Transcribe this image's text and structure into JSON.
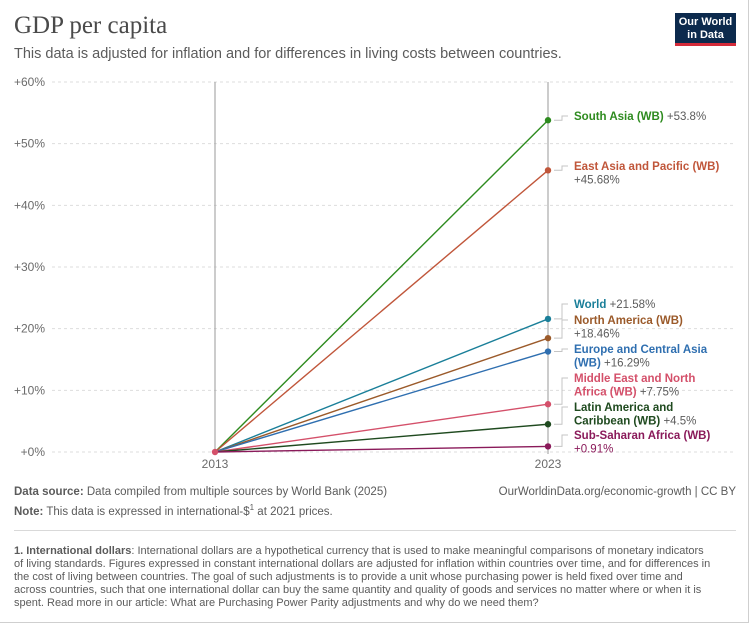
{
  "header": {
    "title": "GDP per capita",
    "subtitle": "This data is adjusted for inflation and for differences in living costs between countries.",
    "logo_line1": "Our World",
    "logo_line2": "in Data"
  },
  "chart_data": {
    "type": "line",
    "x": [
      "2013",
      "2023"
    ],
    "yticks": [
      "+0%",
      "+10%",
      "+20%",
      "+30%",
      "+40%",
      "+50%",
      "+60%"
    ],
    "ylim": [
      0,
      60
    ],
    "grid": true,
    "series": [
      {
        "name": "South Asia (WB)",
        "label_line1": "South Asia (WB)",
        "value_label": "+53.8%",
        "values": [
          0,
          53.8
        ],
        "color": "#2e8b1f",
        "value_inline": true
      },
      {
        "name": "East Asia and Pacific (WB)",
        "label_line1": "East Asia and Pacific (WB)",
        "value_label": "+45.68%",
        "values": [
          0,
          45.68
        ],
        "color": "#c0563a",
        "value_inline": false
      },
      {
        "name": "World",
        "label_line1": "World",
        "value_label": "+21.58%",
        "values": [
          0,
          21.58
        ],
        "color": "#1a7f99",
        "value_inline": true
      },
      {
        "name": "North America (WB)",
        "label_line1": "North America (WB)",
        "value_label": "+18.46%",
        "values": [
          0,
          18.46
        ],
        "color": "#9b5a2a",
        "value_inline": false
      },
      {
        "name": "Europe and Central Asia (WB)",
        "label_line1": "Europe and Central Asia",
        "label_line2": "(WB)",
        "value_label": "+16.29%",
        "values": [
          0,
          16.29
        ],
        "color": "#2f6fb0",
        "value_inline": false
      },
      {
        "name": "Middle East and North Africa (WB)",
        "label_line1": "Middle East and North",
        "label_line2": "Africa (WB)",
        "value_label": "+7.75%",
        "values": [
          0,
          7.75
        ],
        "color": "#d4506a",
        "value_inline": false
      },
      {
        "name": "Latin America and Caribbean (WB)",
        "label_line1": "Latin America and",
        "label_line2": "Caribbean (WB)",
        "value_label": "+4.5%",
        "values": [
          0,
          4.5
        ],
        "color": "#1f4a1f",
        "value_inline": false
      },
      {
        "name": "Sub-Saharan Africa (WB)",
        "label_line1": "Sub-Saharan Africa (WB)",
        "value_label": "+0.91%",
        "values": [
          0,
          0.91
        ],
        "color": "#8a1a5a",
        "value_inline": false
      }
    ]
  },
  "footer": {
    "source_label": "Data source:",
    "source_text": " Data compiled from multiple sources by World Bank (2025)",
    "url": "OurWorldinData.org/economic-growth | CC BY",
    "note_label": "Note:",
    "note_text": " This data is expressed in international-$",
    "note_sup": "1",
    "note_tail": " at 2021 prices.",
    "footnote_label": "1. International dollars",
    "footnote_text": ": International dollars are a hypothetical currency that is used to make meaningful comparisons of monetary indicators of living standards. Figures expressed in constant international dollars are adjusted for inflation within countries over time, and for differences in the cost of living between countries. The goal of such adjustments is to provide a unit whose purchasing power is held fixed over time and across countries, such that one international dollar can buy the same quantity and quality of goods and services no matter where or when it is spent. Read more in our article: What are Purchasing Power Parity adjustments and why do we need them?"
  }
}
